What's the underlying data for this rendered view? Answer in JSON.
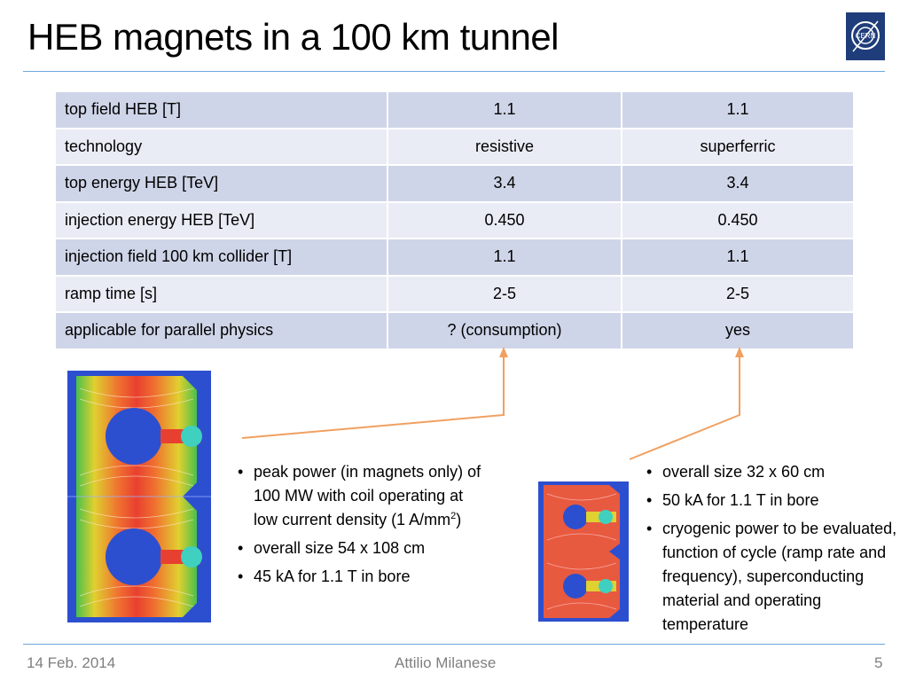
{
  "slide": {
    "title": "HEB magnets in a 100 km tunnel",
    "logo_text": "CERN"
  },
  "table": {
    "rows": [
      [
        "top field HEB [T]",
        "1.1",
        "1.1"
      ],
      [
        "technology",
        "resistive",
        "superferric"
      ],
      [
        "top energy HEB [TeV]",
        "3.4",
        "3.4"
      ],
      [
        "injection energy HEB [TeV]",
        "0.450",
        "0.450"
      ],
      [
        "injection field 100 km collider [T]",
        "1.1",
        "1.1"
      ],
      [
        "ramp time [s]",
        "2-5",
        "2-5"
      ],
      [
        "applicable for parallel physics",
        "? (consumption)",
        "yes"
      ]
    ]
  },
  "left_notes": {
    "item1_text": "peak power (in magnets only) of 100 MW with coil operating at low current density (1 A/mm",
    "item1_sup": "2",
    "item1_tail": ")",
    "item2": "overall size 54 x 108 cm",
    "item3": "45 kA for 1.1 T in bore"
  },
  "right_notes": {
    "item1": "overall size 32 x 60 cm",
    "item2": "50 kA for 1.1 T in bore",
    "item3": "cryogenic power to be evaluated,  function of cycle (ramp rate and frequency), superconducting material and operating temperature"
  },
  "footer": {
    "date": "14 Feb. 2014",
    "author": "Attilio Milanese",
    "page": "5"
  },
  "colors": {
    "accent_rule": "#6fa8dc",
    "arrow": "#f0a060",
    "table_dark": "#cfd5e8",
    "table_light": "#e9ecf5"
  }
}
